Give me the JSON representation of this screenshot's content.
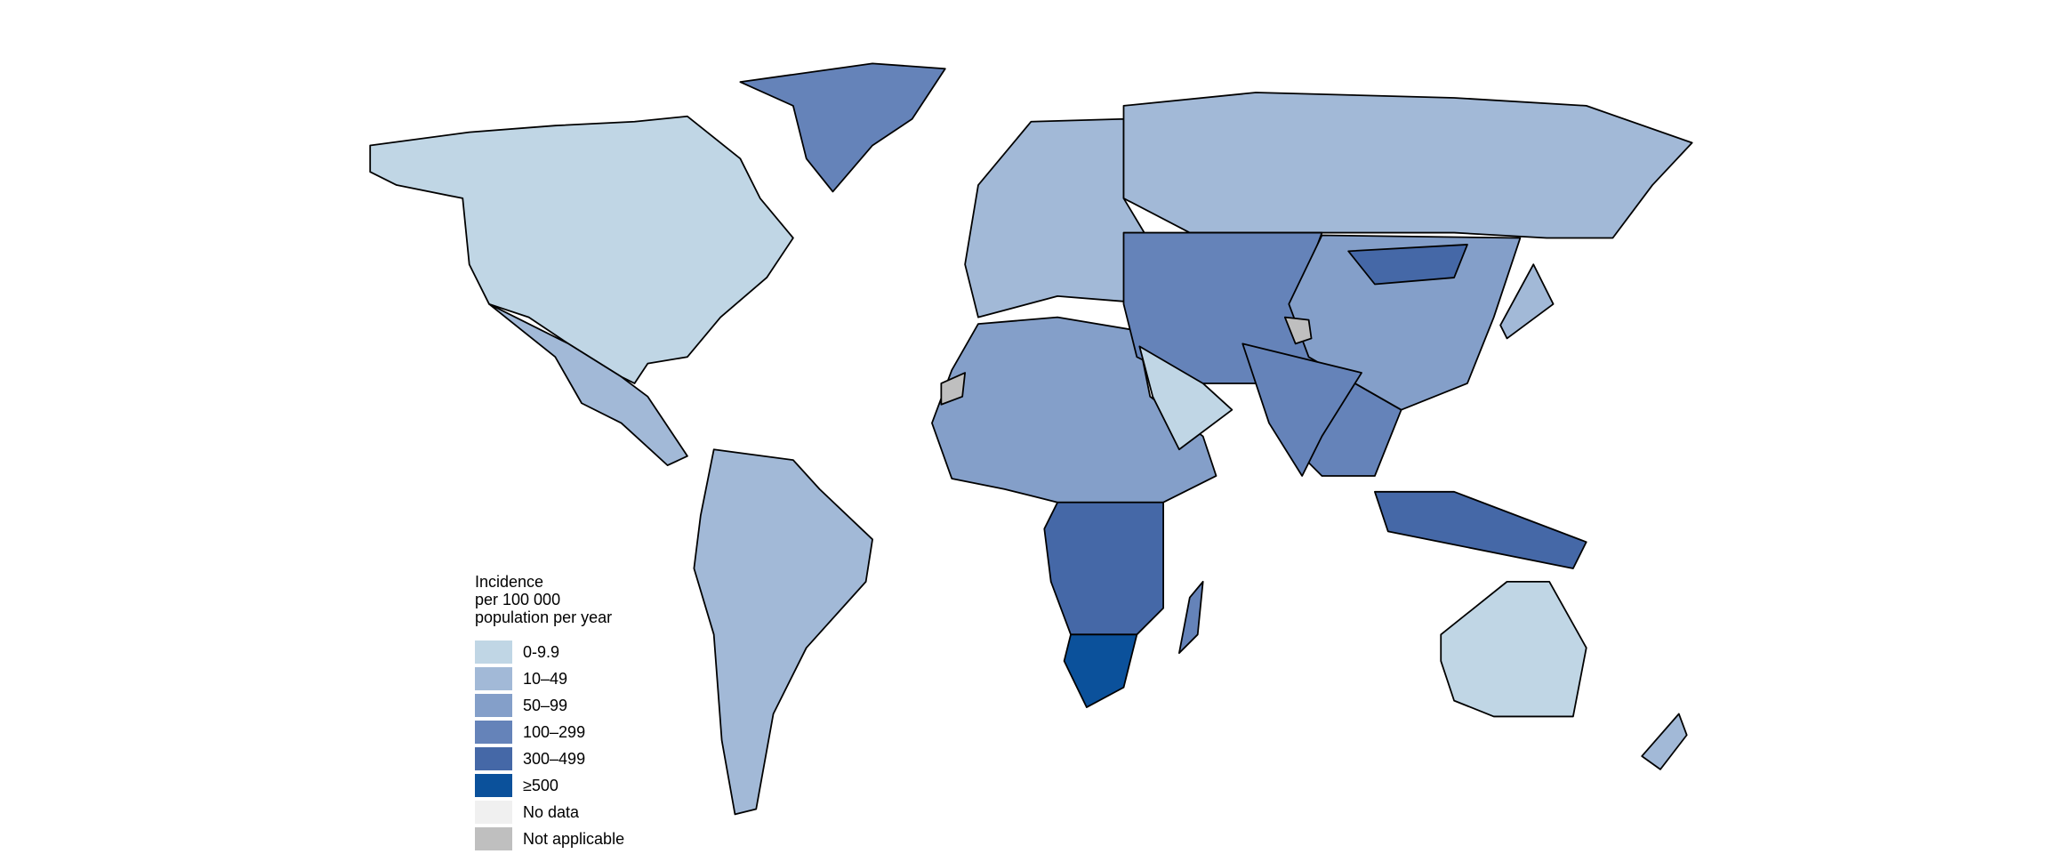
{
  "legend": {
    "title_lines": [
      "Incidence",
      "per 100 000",
      "population per year"
    ],
    "items": [
      {
        "label": "0-9.9",
        "color": "#c0d6e5"
      },
      {
        "label": "10–49",
        "color": "#a2b9d7"
      },
      {
        "label": "50–99",
        "color": "#849fc9"
      },
      {
        "label": "100–299",
        "color": "#6583b9"
      },
      {
        "label": "300–499",
        "color": "#4568a7"
      },
      {
        "label": "≥500",
        "color": "#0b519b"
      },
      {
        "label": "No data",
        "color": "#f0f0f0"
      },
      {
        "label": "Not applicable",
        "color": "#bfbfbf"
      }
    ]
  },
  "regions": [
    {
      "name": "north-america",
      "class": "0-9.9"
    },
    {
      "name": "mexico-central-america",
      "class": "10–49"
    },
    {
      "name": "greenland",
      "class": "100–299"
    },
    {
      "name": "south-america",
      "class": "10–49"
    },
    {
      "name": "africa-north",
      "class": "50–99"
    },
    {
      "name": "africa-central",
      "class": "300–499"
    },
    {
      "name": "southern-africa",
      "class": "≥500"
    },
    {
      "name": "madagascar",
      "class": "100–299"
    },
    {
      "name": "europe",
      "class": "10–49"
    },
    {
      "name": "russia",
      "class": "10–49"
    },
    {
      "name": "central-asia",
      "class": "100–299"
    },
    {
      "name": "china",
      "class": "50–99"
    },
    {
      "name": "mongolia",
      "class": "300–499"
    },
    {
      "name": "arabia",
      "class": "0-9.9"
    },
    {
      "name": "india",
      "class": "100–299"
    },
    {
      "name": "indonesia",
      "class": "300–499"
    },
    {
      "name": "japan",
      "class": "10–49"
    },
    {
      "name": "australia",
      "class": "0-9.9"
    },
    {
      "name": "new-zealand",
      "class": "10–49"
    },
    {
      "name": "kashmir",
      "class": "Not applicable"
    },
    {
      "name": "western-sahara",
      "class": "Not applicable"
    }
  ]
}
